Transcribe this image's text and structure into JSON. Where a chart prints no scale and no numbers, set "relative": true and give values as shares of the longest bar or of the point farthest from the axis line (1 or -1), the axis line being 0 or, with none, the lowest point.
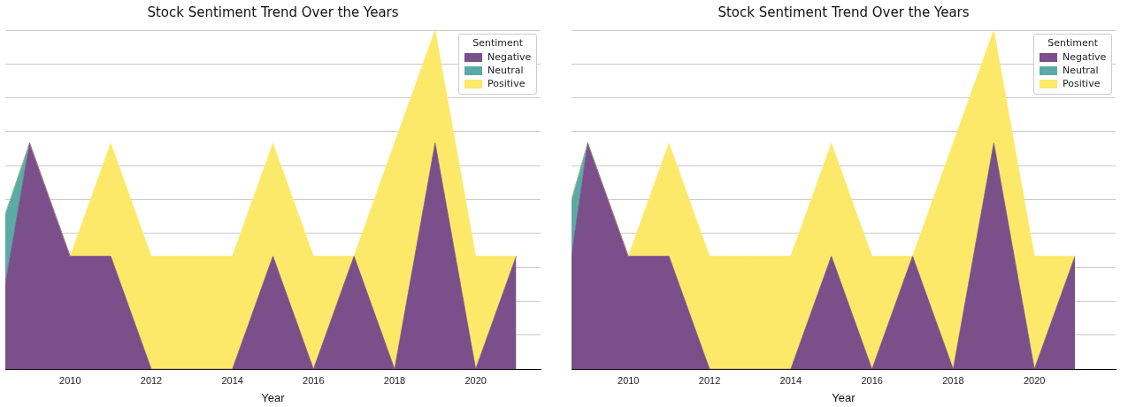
{
  "chart_data": [
    {
      "type": "area",
      "title": "Stock Sentiment Trend Over the Years",
      "xlabel": "Year",
      "legend_title": "Sentiment",
      "relative": true,
      "stacked": true,
      "x": [
        2008.4,
        2009,
        2010,
        2011,
        2012,
        2013,
        2014,
        2015,
        2016,
        2017,
        2018,
        2019,
        2020,
        2021
      ],
      "xlim": [
        2008.4,
        2021.6
      ],
      "xticks": [
        2010,
        2012,
        2014,
        2016,
        2018,
        2020
      ],
      "grid": "y",
      "legend": "top right",
      "marker": "none",
      "tick_labels": "x",
      "series": [
        {
          "name": "Negative",
          "color": "#7b4f8a",
          "values": [
            0.25,
            0.667,
            0.333,
            0.333,
            0,
            0,
            0,
            0.333,
            0,
            0.333,
            0,
            0.667,
            0,
            0.333
          ]
        },
        {
          "name": "Neutral",
          "color": "#5aaba5",
          "values": [
            0.208,
            0,
            null,
            null,
            null,
            null,
            null,
            null,
            null,
            null,
            null,
            null,
            null,
            null
          ]
        },
        {
          "name": "Positive",
          "color": "#fce96a",
          "values": [
            0,
            0,
            0,
            0.333,
            0.333,
            0.333,
            0.333,
            0.333,
            0.333,
            0,
            0.667,
            0.333,
            0.333,
            0
          ]
        }
      ]
    },
    {
      "type": "area",
      "title": "Stock Sentiment Trend Over the Years",
      "xlabel": "Year",
      "legend_title": "Sentiment",
      "relative": true,
      "stacked": true,
      "x": [
        2008.6,
        2009,
        2010,
        2011,
        2012,
        2013,
        2014,
        2015,
        2016,
        2017,
        2018,
        2019,
        2020,
        2021
      ],
      "xlim": [
        2008.6,
        2022
      ],
      "xticks": [
        2010,
        2012,
        2014,
        2016,
        2018,
        2020
      ],
      "grid": "y",
      "legend": "top right",
      "marker": "none",
      "tick_labels": "x",
      "series": [
        {
          "name": "Negative",
          "color": "#7b4f8a",
          "values": [
            0.333,
            0.667,
            0.333,
            0.333,
            0,
            0,
            0,
            0.333,
            0,
            0.333,
            0,
            0.667,
            0,
            0.333
          ]
        },
        {
          "name": "Neutral",
          "color": "#5aaba5",
          "values": [
            0.167,
            0,
            null,
            null,
            null,
            null,
            null,
            null,
            null,
            null,
            null,
            null,
            null,
            null
          ]
        },
        {
          "name": "Positive",
          "color": "#fce96a",
          "values": [
            0,
            0,
            0,
            0.333,
            0.333,
            0.333,
            0.333,
            0.333,
            0.333,
            0,
            0.667,
            0.333,
            0.333,
            0
          ]
        }
      ]
    }
  ]
}
